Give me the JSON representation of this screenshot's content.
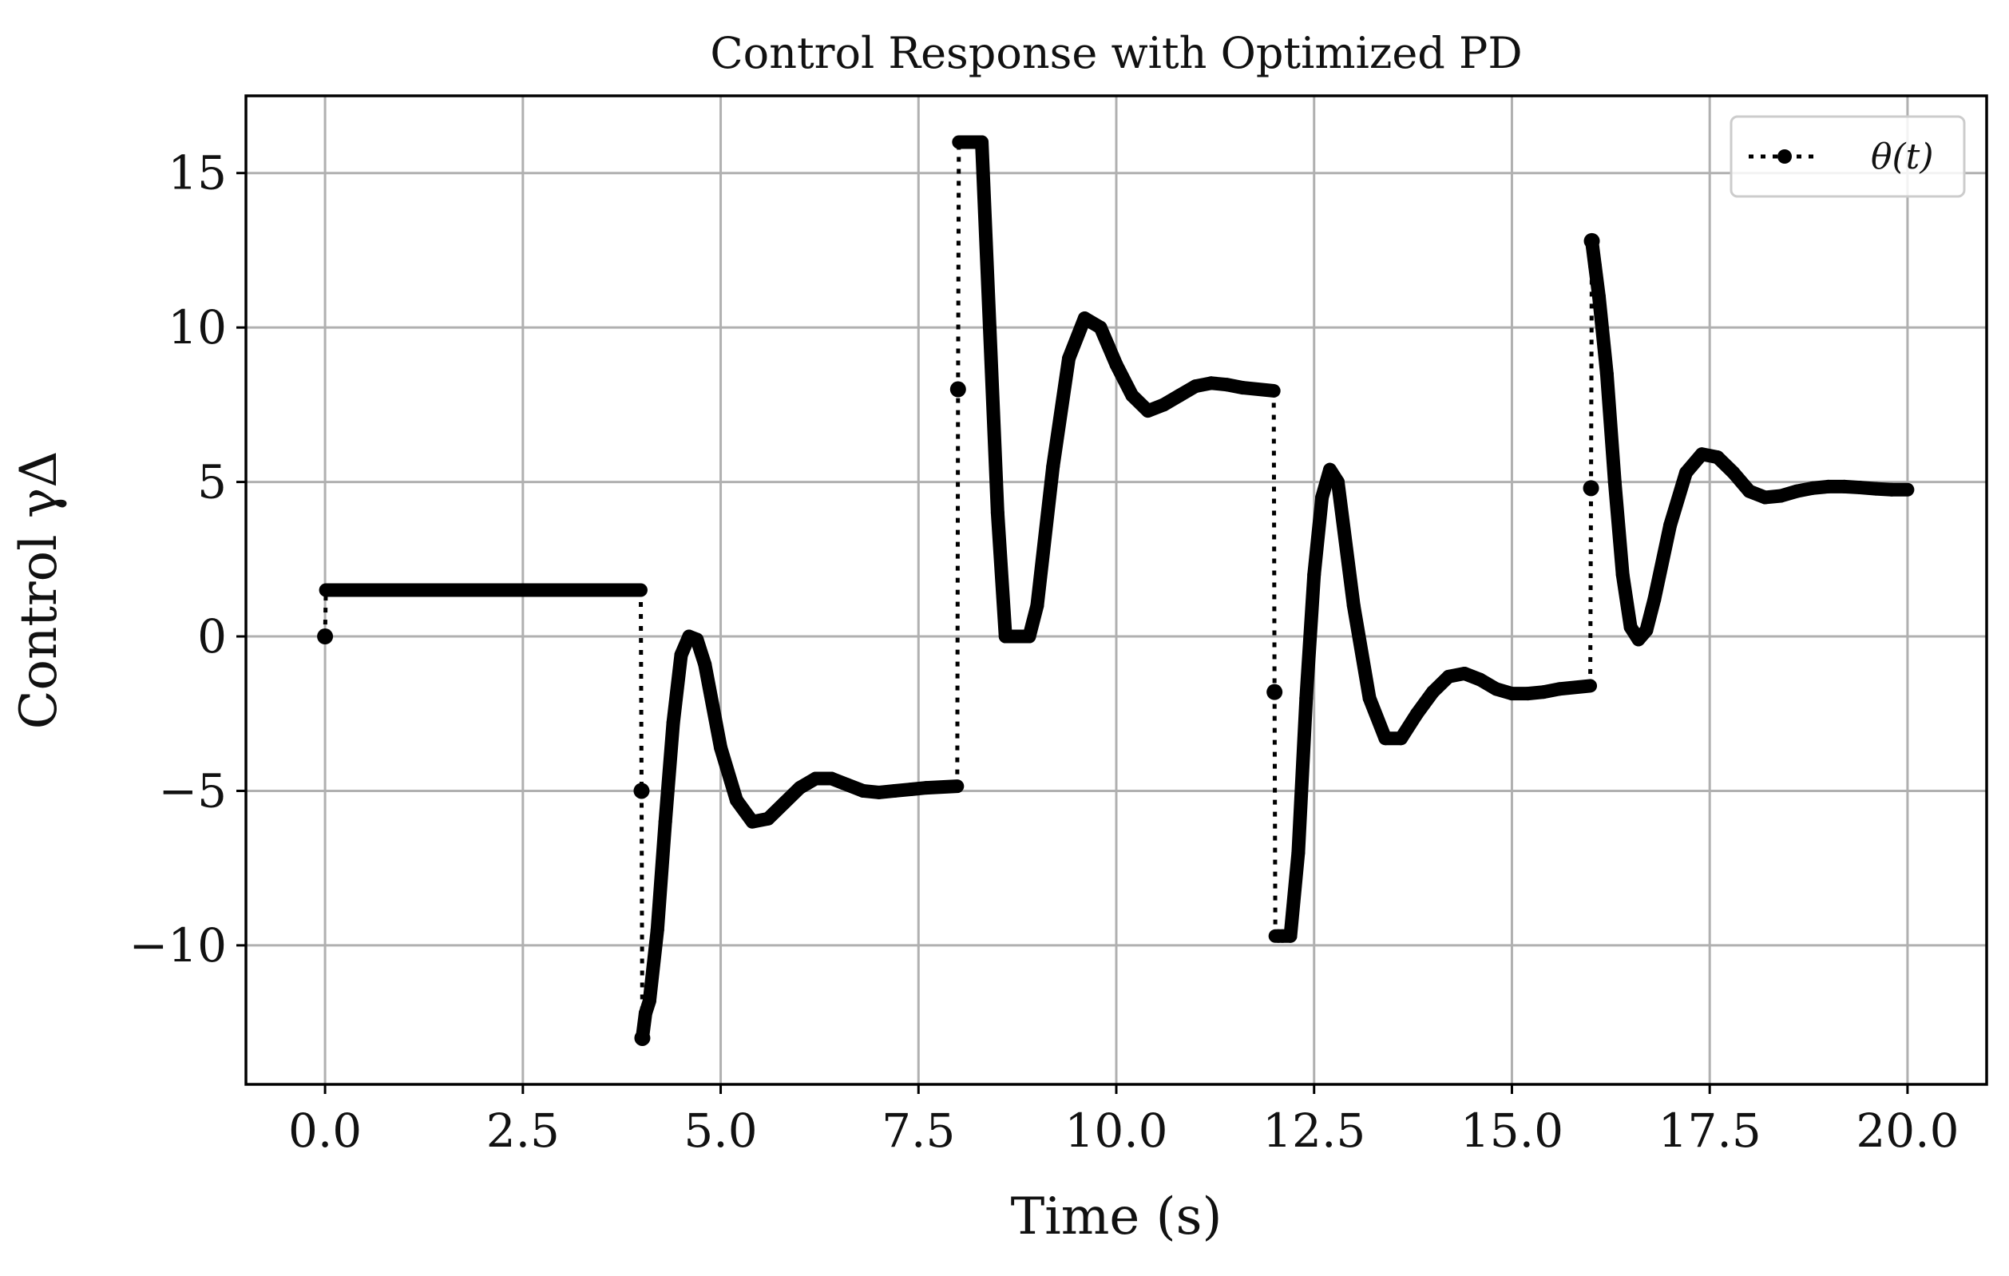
{
  "chart_data": {
    "type": "line",
    "title": "Control Response with Optimized PD",
    "xlabel": "Time (s)",
    "ylabel": "Control γΔ",
    "xlim": [
      -1.0,
      21.0
    ],
    "ylim": [
      -14.5,
      17.5
    ],
    "xticks": [
      0,
      2.5,
      5,
      7.5,
      10,
      12.5,
      15,
      17.5,
      20
    ],
    "xtick_labels": [
      "0.0",
      "2.5",
      "5.0",
      "7.5",
      "10.0",
      "12.5",
      "15.0",
      "17.5",
      "20.0"
    ],
    "yticks": [
      -10,
      -5,
      0,
      5,
      10,
      15
    ],
    "ytick_labels": [
      "−10",
      "−5",
      "0",
      "5",
      "10",
      "15"
    ],
    "grid": true,
    "legend": {
      "placement": "upper-right",
      "entries": [
        "θ(t)"
      ]
    },
    "series": [
      {
        "name": "θ(t)",
        "style": "dotted-with-markers",
        "color": "#000000",
        "x": [
          0.0,
          0.01,
          0.5,
          1.0,
          1.5,
          2.0,
          2.5,
          3.0,
          3.5,
          3.99,
          4.0,
          4.01,
          4.05,
          4.1,
          4.2,
          4.3,
          4.4,
          4.5,
          4.6,
          4.7,
          4.8,
          5.0,
          5.2,
          5.4,
          5.6,
          5.8,
          6.0,
          6.2,
          6.4,
          6.6,
          6.8,
          7.0,
          7.2,
          7.4,
          7.6,
          7.99,
          8.0,
          8.01,
          8.05,
          8.1,
          8.2,
          8.3,
          8.4,
          8.5,
          8.6,
          8.8,
          8.9,
          9.0,
          9.2,
          9.4,
          9.6,
          9.8,
          10.0,
          10.2,
          10.4,
          10.6,
          10.8,
          11.0,
          11.2,
          11.4,
          11.6,
          11.99,
          12.0,
          12.01,
          12.05,
          12.1,
          12.2,
          12.3,
          12.4,
          12.5,
          12.6,
          12.7,
          12.8,
          13.0,
          13.2,
          13.4,
          13.6,
          13.8,
          14.0,
          14.2,
          14.4,
          14.6,
          14.8,
          15.0,
          15.2,
          15.4,
          15.6,
          15.99,
          16.0,
          16.01,
          16.05,
          16.1,
          16.2,
          16.3,
          16.4,
          16.5,
          16.6,
          16.7,
          16.8,
          17.0,
          17.2,
          17.4,
          17.6,
          17.8,
          18.0,
          18.2,
          18.4,
          18.6,
          18.8,
          19.0,
          19.2,
          19.4,
          19.6,
          19.8,
          20.0
        ],
        "y": [
          0.0,
          1.5,
          1.5,
          1.5,
          1.5,
          1.5,
          1.5,
          1.5,
          1.5,
          1.5,
          -5.0,
          -13.0,
          -12.2,
          -11.8,
          -9.5,
          -6.0,
          -2.8,
          -0.6,
          0.0,
          -0.1,
          -0.9,
          -3.6,
          -5.3,
          -6.0,
          -5.9,
          -5.4,
          -4.9,
          -4.6,
          -4.6,
          -4.8,
          -5.0,
          -5.05,
          -5.0,
          -4.95,
          -4.9,
          -4.85,
          8.0,
          16.0,
          16.0,
          16.0,
          16.0,
          16.0,
          10.0,
          4.0,
          0.0,
          0.0,
          0.0,
          1.0,
          5.5,
          9.0,
          10.3,
          10.0,
          8.8,
          7.8,
          7.3,
          7.5,
          7.8,
          8.1,
          8.2,
          8.15,
          8.05,
          7.95,
          -1.8,
          -9.7,
          -9.7,
          -9.7,
          -9.7,
          -7.0,
          -2.0,
          2.0,
          4.5,
          5.4,
          5.0,
          1.0,
          -2.0,
          -3.3,
          -3.3,
          -2.5,
          -1.8,
          -1.3,
          -1.2,
          -1.4,
          -1.7,
          -1.85,
          -1.85,
          -1.8,
          -1.7,
          -1.6,
          4.8,
          12.8,
          12.0,
          11.0,
          8.5,
          5.0,
          2.0,
          0.3,
          -0.1,
          0.2,
          1.2,
          3.6,
          5.3,
          5.9,
          5.8,
          5.3,
          4.7,
          4.5,
          4.55,
          4.7,
          4.8,
          4.85,
          4.85,
          4.82,
          4.78,
          4.75,
          4.75
        ],
        "markers": [
          [
            0.0,
            0.0
          ],
          [
            4.0,
            -5.0
          ],
          [
            4.01,
            -13.0
          ],
          [
            8.0,
            8.0
          ],
          [
            12.0,
            -1.8
          ],
          [
            16.0,
            4.8
          ],
          [
            16.01,
            12.8
          ]
        ]
      }
    ]
  }
}
